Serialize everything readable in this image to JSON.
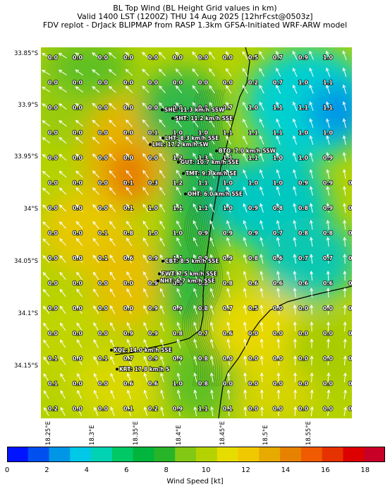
{
  "header": {
    "line1": "BL Top Wind (BL Height Grid values in km)",
    "line2": "Valid 1400 LST (1200Z) THU 14 Aug 2025 [12hrFcst@0503z]",
    "line3": "FDV replot - DrJack BLIPMAP from RASP 1.3km GFSA-Initiated WRF-ARW model"
  },
  "map": {
    "lat_ticks": [
      "33.85°S",
      "33.9°S",
      "33.95°S",
      "34°S",
      "34.05°S",
      "34.1°S",
      "34.15°S"
    ],
    "lon_ticks": [
      "18.25°E",
      "18.3°E",
      "18.35°E",
      "18.4°E",
      "18.45°E",
      "18.5°E",
      "18.55°E"
    ],
    "grid_values": [
      [
        "0.0",
        "0.0",
        "0.0",
        "0.0",
        "0.0",
        "0.0",
        "0.0",
        "0.0",
        "0.5",
        "0.7",
        "0.9",
        "1.0",
        ""
      ],
      [
        "0.0",
        "0.0",
        "0.0",
        "0.0",
        "0.0",
        "0.0",
        "0.0",
        "0.0",
        "0.2",
        "0.7",
        "1.0",
        "1.1",
        ""
      ],
      [
        "0.0",
        "0.0",
        "0.0",
        "0.0",
        "0.0",
        "0.8",
        "0.0",
        "0.7",
        "1.0",
        "1.1",
        "1.1",
        "1.1",
        ""
      ],
      [
        "0.0",
        "0.0",
        "0.0",
        "0.0",
        "0.1",
        "1.0",
        "1.0",
        "1.1",
        "1.1",
        "1.1",
        "1.0",
        "1.0",
        ""
      ],
      [
        "0.0",
        "0.0",
        "0.0",
        "0.0",
        "0.0",
        "1.2",
        "1.3",
        "1.1",
        "1.1",
        "1.0",
        "1.0",
        "0.9",
        ""
      ],
      [
        "0.0",
        "0.0",
        "0.0",
        "0.1",
        "0.3",
        "1.2",
        "1.1",
        "1.0",
        "1.0",
        "1.0",
        "0.9",
        "0.9",
        "0.8"
      ],
      [
        "0.0",
        "0.0",
        "0.0",
        "0.1",
        "1.0",
        "1.1",
        "1.1",
        "1.0",
        "0.9",
        "0.8",
        "0.8",
        "0.9",
        "0.8"
      ],
      [
        "0.0",
        "0.0",
        "0.1",
        "0.8",
        "1.0",
        "1.0",
        "0.9",
        "0.9",
        "0.9",
        "0.7",
        "0.8",
        "0.8",
        "0.7"
      ],
      [
        "0.0",
        "0.0",
        "0.1",
        "0.6",
        "0.9",
        "1.1",
        "0.9",
        "0.9",
        "0.8",
        "0.6",
        "0.7",
        "0.7",
        "0.6"
      ],
      [
        "0.0",
        "0.0",
        "0.0",
        "0.0",
        "0.9",
        "0.9",
        "0.8",
        "0.8",
        "0.6",
        "0.6",
        "0.6",
        "0.6",
        "0.0"
      ],
      [
        "0.0",
        "0.0",
        "0.0",
        "0.0",
        "0.9",
        "0.9",
        "0.8",
        "0.7",
        "0.5",
        "0.0",
        "0.0",
        "0.0",
        "0.0"
      ],
      [
        "0.0",
        "0.0",
        "0.0",
        "0.9",
        "0.9",
        "0.8",
        "0.7",
        "0.6",
        "0.0",
        "0.0",
        "0.0",
        "0.0",
        "0.0"
      ],
      [
        "0.1",
        "0.0",
        "0.1",
        "0.7",
        "0.9",
        "0.9",
        "0.8",
        "0.0",
        "0.0",
        "0.0",
        "0.0",
        "0.0",
        "0.0"
      ],
      [
        "0.1",
        "0.0",
        "0.0",
        "0.6",
        "0.6",
        "1.0",
        "0.8",
        "0.0",
        "0.0",
        "0.0",
        "0.0",
        "0.0",
        "0.0"
      ],
      [
        "0.2",
        "0.0",
        "0.0",
        "0.1",
        "0.2",
        "0.9",
        "1.1",
        "0.1",
        "0.0",
        "0.0",
        "0.0",
        "0.0",
        "0.0"
      ]
    ],
    "stations": [
      {
        "label": "SHL: 11.3 km/h SSW"
      },
      {
        "label": "SHT: 11.2 km/h SSE"
      },
      {
        "label": "LHT: 8.3 km/h SSE"
      },
      {
        "label": "LHL: 17.2 km/h SW"
      },
      {
        "label": "BTO: 7.0 km/h SSW"
      },
      {
        "label": "GUT: 10.7 km/h SSE"
      },
      {
        "label": "TMT: 9.3 km/h SE"
      },
      {
        "label": "OHT: 6.0 km/h SSE"
      },
      {
        "label": "CBT: 8.5 km/h SSE"
      },
      {
        "label": "FWT: 7.5 km/h SSE"
      },
      {
        "label": "NHT: 6.7 km/h SSE"
      },
      {
        "label": "KQL: 14.0 km/h SSE"
      },
      {
        "label": "KRT: 17.8 km/h S"
      }
    ]
  },
  "colorbar": {
    "label": "Wind Speed [kt]",
    "ticks": [
      "0",
      "2",
      "4",
      "6",
      "8",
      "10",
      "12",
      "14",
      "16",
      "18"
    ],
    "colors": [
      "#0014ff",
      "#0050f0",
      "#0096e6",
      "#00c8e6",
      "#00d2b4",
      "#00c864",
      "#00b43c",
      "#28b428",
      "#82c814",
      "#b4d200",
      "#e6dc00",
      "#f0c800",
      "#e6aa00",
      "#e68200",
      "#f05a00",
      "#e63200",
      "#dc0000",
      "#c80028"
    ]
  }
}
